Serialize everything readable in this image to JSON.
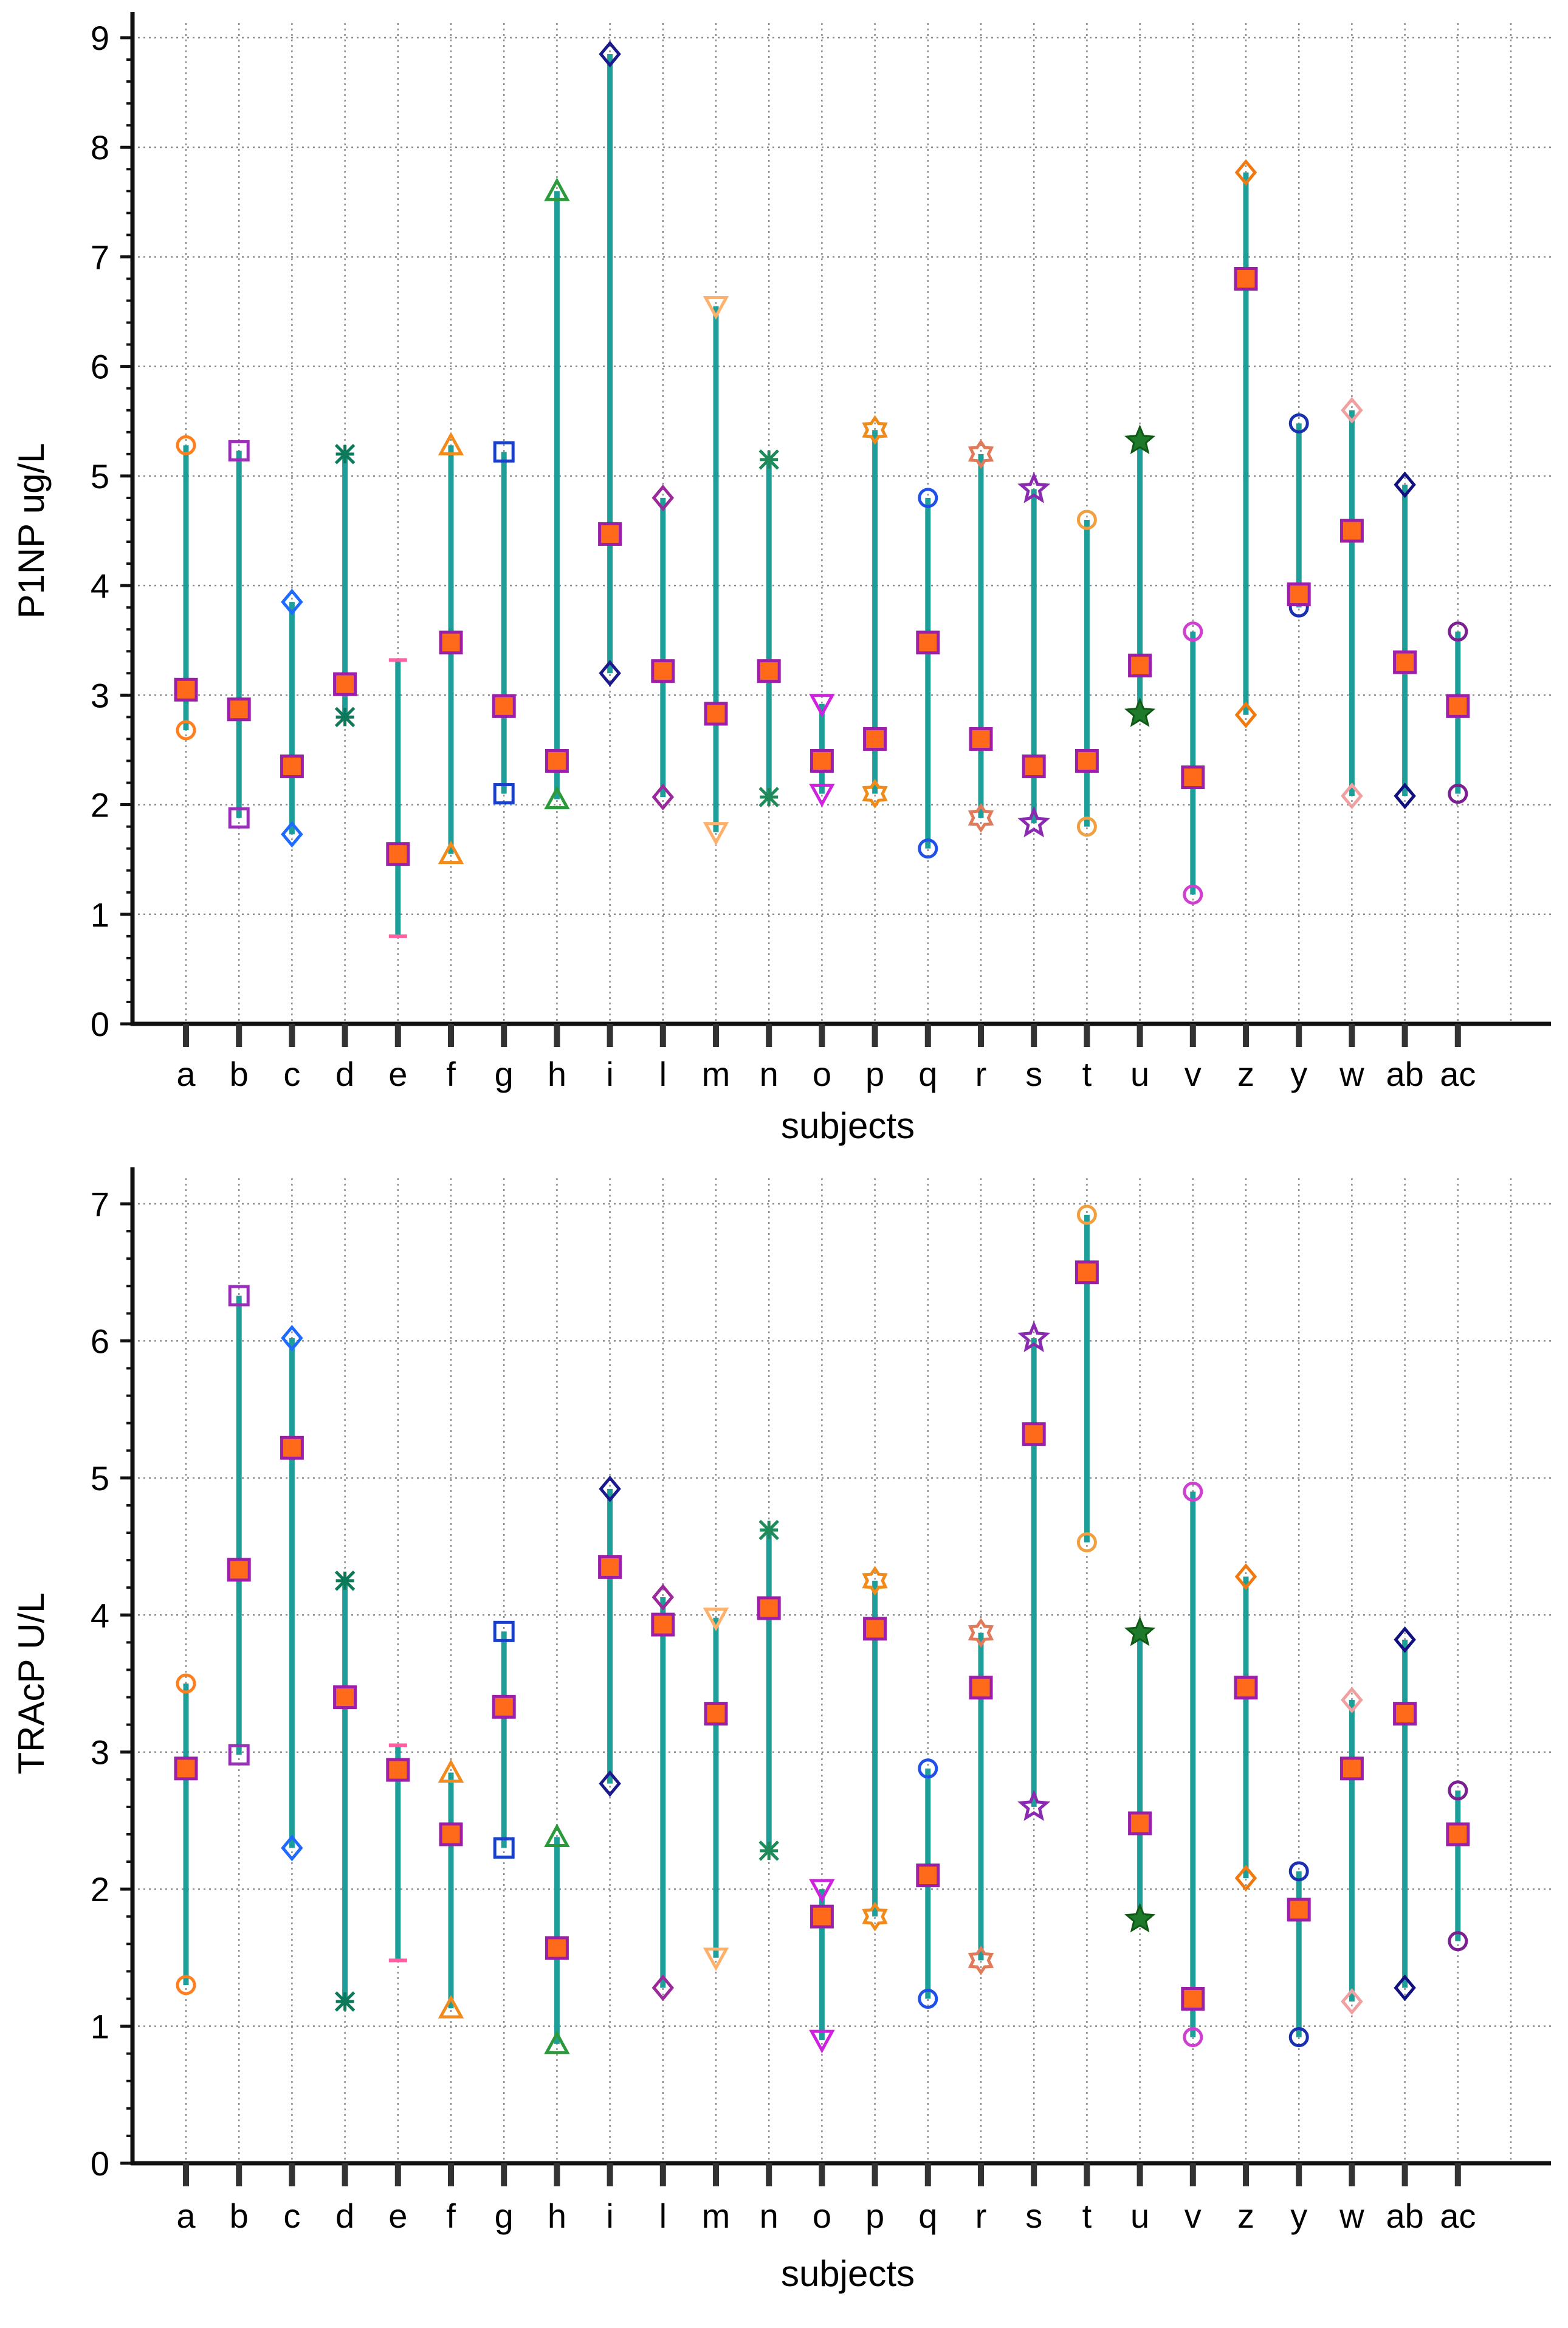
{
  "colors": {
    "stem": "#1E9E98",
    "grid": "#8C8C8C",
    "axis": "#111111",
    "mean_fill": "#FF6A1A",
    "mean_stroke": "#9B1FA8"
  },
  "chart_data": [
    {
      "type": "range-plot",
      "title": "",
      "xlabel": "subjects",
      "ylabel": "P1NP ug/L",
      "ylim": [
        0,
        9
      ],
      "yticks": [
        "0",
        "1",
        "2",
        "3",
        "4",
        "5",
        "6",
        "7",
        "8",
        "9"
      ],
      "categories": [
        "a",
        "b",
        "c",
        "d",
        "e",
        "f",
        "g",
        "h",
        "i",
        "l",
        "m",
        "n",
        "o",
        "p",
        "q",
        "r",
        "s",
        "t",
        "u",
        "v",
        "z",
        "y",
        "w",
        "ab",
        "ac"
      ],
      "series": [
        {
          "name": "max",
          "values": [
            5.28,
            5.23,
            3.85,
            5.2,
            3.32,
            5.28,
            5.22,
            7.6,
            8.85,
            4.8,
            6.55,
            5.15,
            2.92,
            5.42,
            4.8,
            5.2,
            4.88,
            4.6,
            5.32,
            3.58,
            7.77,
            5.48,
            5.6,
            4.92,
            3.58
          ]
        },
        {
          "name": "min",
          "values": [
            2.68,
            1.88,
            1.73,
            2.8,
            0.8,
            1.55,
            2.1,
            2.05,
            3.2,
            2.07,
            1.75,
            2.07,
            2.1,
            2.1,
            1.6,
            1.88,
            1.83,
            1.8,
            2.83,
            1.18,
            2.82,
            3.8,
            2.08,
            2.08,
            2.1
          ]
        },
        {
          "name": "mean",
          "values": [
            3.05,
            2.87,
            2.35,
            3.1,
            1.55,
            3.48,
            2.9,
            2.4,
            4.47,
            3.22,
            2.83,
            3.22,
            2.4,
            2.6,
            3.48,
            2.6,
            2.35,
            2.4,
            3.27,
            2.25,
            6.8,
            3.92,
            4.5,
            3.3,
            2.9
          ]
        }
      ]
    },
    {
      "type": "range-plot",
      "title": "",
      "xlabel": "subjects",
      "ylabel": "TRAcP U/L",
      "ylim": [
        0,
        7
      ],
      "yticks": [
        "0",
        "1",
        "2",
        "3",
        "4",
        "5",
        "6",
        "7"
      ],
      "categories": [
        "a",
        "b",
        "c",
        "d",
        "e",
        "f",
        "g",
        "h",
        "i",
        "l",
        "m",
        "n",
        "o",
        "p",
        "q",
        "r",
        "s",
        "t",
        "u",
        "v",
        "z",
        "y",
        "w",
        "ab",
        "ac"
      ],
      "series": [
        {
          "name": "max",
          "values": [
            3.5,
            6.33,
            6.02,
            4.25,
            3.05,
            2.85,
            3.88,
            2.38,
            4.92,
            4.13,
            3.98,
            4.62,
            2.0,
            4.25,
            2.88,
            3.87,
            6.02,
            6.92,
            3.87,
            4.9,
            4.28,
            2.13,
            3.38,
            3.82,
            2.72
          ]
        },
        {
          "name": "min",
          "values": [
            1.3,
            2.98,
            2.3,
            1.18,
            1.48,
            1.13,
            2.3,
            0.87,
            2.77,
            1.28,
            1.5,
            2.28,
            0.9,
            1.8,
            1.2,
            1.48,
            2.6,
            4.53,
            1.78,
            0.92,
            2.08,
            0.92,
            1.18,
            1.28,
            1.62
          ]
        },
        {
          "name": "mean",
          "values": [
            2.88,
            4.33,
            5.22,
            3.4,
            2.87,
            2.4,
            3.33,
            1.57,
            4.35,
            3.93,
            3.28,
            4.05,
            1.8,
            3.9,
            2.1,
            3.47,
            5.32,
            6.5,
            2.48,
            1.2,
            3.47,
            1.85,
            2.88,
            3.28,
            2.4
          ]
        }
      ]
    }
  ]
}
